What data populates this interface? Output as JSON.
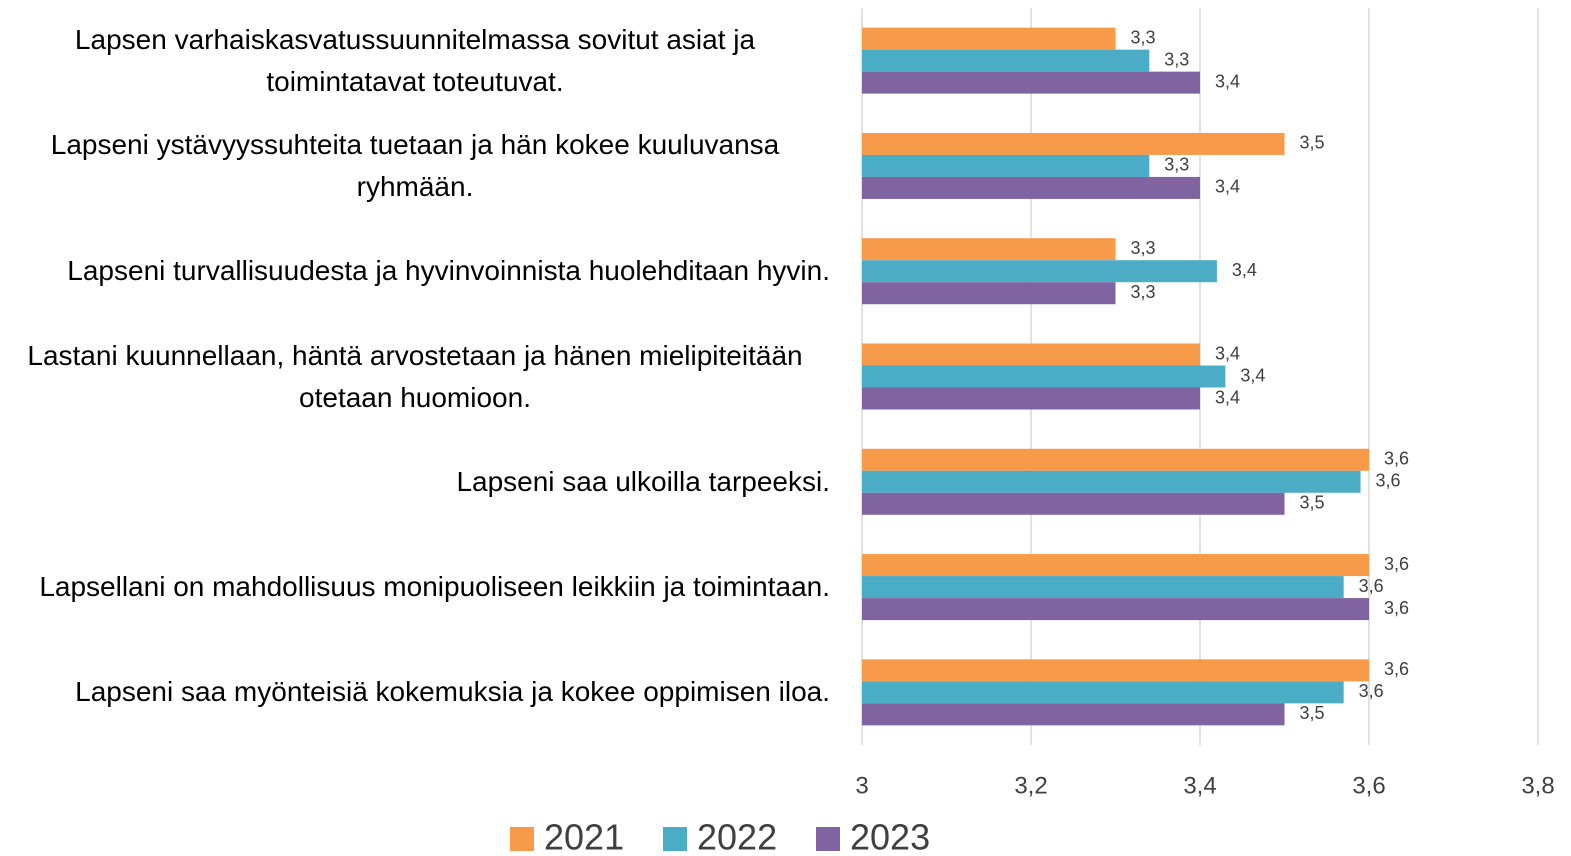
{
  "chart_data": {
    "type": "bar",
    "orientation": "horizontal",
    "categories": [
      "Lapsen varhaiskasvatussuunnitelmassa sovitut asiat ja toimintatavat toteutuvat.",
      "Lapseni ystävyyssuhteita tuetaan ja hän kokee kuuluvansa ryhmään.",
      "Lapseni turvallisuudesta ja hyvinvoinnista huolehditaan hyvin.",
      "Lastani kuunnellaan, häntä arvostetaan ja hänen mielipiteitään otetaan huomioon.",
      "Lapseni saa ulkoilla tarpeeksi.",
      "Lapsellani on mahdollisuus monipuoliseen leikkiin ja toimintaan.",
      "Lapseni saa myönteisiä kokemuksia ja kokee oppimisen iloa."
    ],
    "series": [
      {
        "name": "2021",
        "color": "#f79a4a",
        "values": [
          3.3,
          3.5,
          3.3,
          3.4,
          3.6,
          3.6,
          3.6
        ],
        "value_labels": [
          "3,3",
          "3,5",
          "3,3",
          "3,4",
          "3,6",
          "3,6",
          "3,6"
        ]
      },
      {
        "name": "2022",
        "color": "#4bacc6",
        "values": [
          3.34,
          3.34,
          3.42,
          3.43,
          3.59,
          3.57,
          3.57
        ],
        "value_labels": [
          "3,3",
          "3,3",
          "3,4",
          "3,4",
          "3,6",
          "3,6",
          "3,6"
        ]
      },
      {
        "name": "2023",
        "color": "#8064a2",
        "values": [
          3.4,
          3.4,
          3.3,
          3.4,
          3.5,
          3.6,
          3.5
        ],
        "value_labels": [
          "3,4",
          "3,4",
          "3,3",
          "3,4",
          "3,5",
          "3,6",
          "3,5"
        ]
      }
    ],
    "xlim": [
      3,
      3.8
    ],
    "xticks": [
      3,
      {
        "value": 3.2,
        "label": "3,2"
      },
      {
        "value": 3.4,
        "label": "3,4"
      },
      {
        "value": 3.6,
        "label": "3,6"
      },
      {
        "value": 3.8,
        "label": "3,8"
      }
    ],
    "grid": true,
    "legend": "bottom"
  }
}
